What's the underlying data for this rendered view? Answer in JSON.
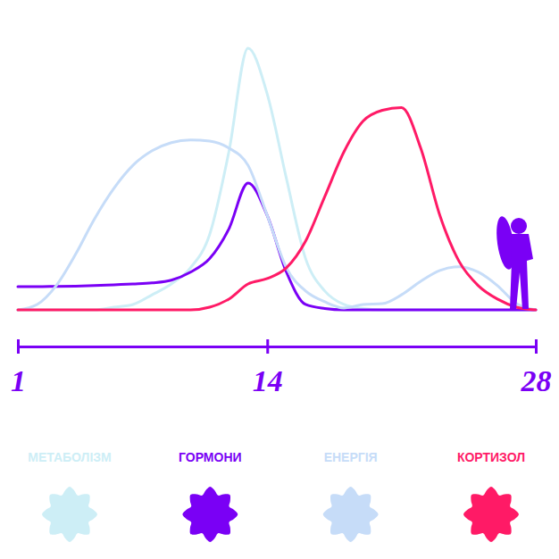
{
  "chart_data": {
    "type": "line",
    "x": [
      1,
      2,
      3,
      4,
      5,
      6,
      7,
      8,
      9,
      10,
      11,
      12,
      13,
      14,
      15,
      16,
      17,
      18,
      19,
      20,
      21,
      22,
      23,
      24,
      25,
      26,
      27,
      28
    ],
    "xlim": [
      1,
      28
    ],
    "xticks": [
      1,
      14,
      28
    ],
    "ylim": [
      0,
      100
    ],
    "tick_labels": "x",
    "legend": "bottom",
    "series": [
      {
        "name": "МЕТАБОЛІЗМ",
        "color": "#cdeef6",
        "values": [
          0,
          0,
          0,
          0,
          0,
          1,
          2,
          5.6,
          9.6,
          15.6,
          28,
          58.6,
          97,
          80,
          48.7,
          19,
          7,
          2,
          0.5,
          0,
          0,
          0,
          0,
          0,
          0,
          0,
          0,
          0
        ]
      },
      {
        "name": "ГОРМОНИ",
        "color": "#7a00f5",
        "values": [
          8.6,
          8.6,
          8.7,
          8.8,
          9,
          9.3,
          9.6,
          10,
          11,
          14,
          19,
          30,
          47,
          35,
          14,
          2,
          0.5,
          0,
          0,
          0,
          0,
          0,
          0,
          0,
          0,
          0,
          0,
          0
        ]
      },
      {
        "name": "ЕНЕРГІЯ",
        "color": "#c6dcf8",
        "values": [
          0,
          2,
          9,
          20.5,
          33.8,
          45,
          53.6,
          59,
          62,
          63,
          62.6,
          60,
          53.6,
          35,
          15.6,
          7,
          3,
          0.7,
          2,
          2.3,
          5.6,
          10.6,
          14.6,
          16,
          14,
          9,
          2.3,
          0
        ]
      },
      {
        "name": "КОРТИЗОЛ",
        "color": "#ff1a66",
        "values": [
          0,
          0,
          0,
          0,
          0,
          0,
          0,
          0,
          0,
          0,
          1,
          4,
          9.6,
          11.6,
          15.6,
          25.5,
          42,
          58.6,
          70,
          74,
          75,
          60,
          35,
          18,
          9,
          4,
          1,
          0
        ]
      }
    ]
  }
}
